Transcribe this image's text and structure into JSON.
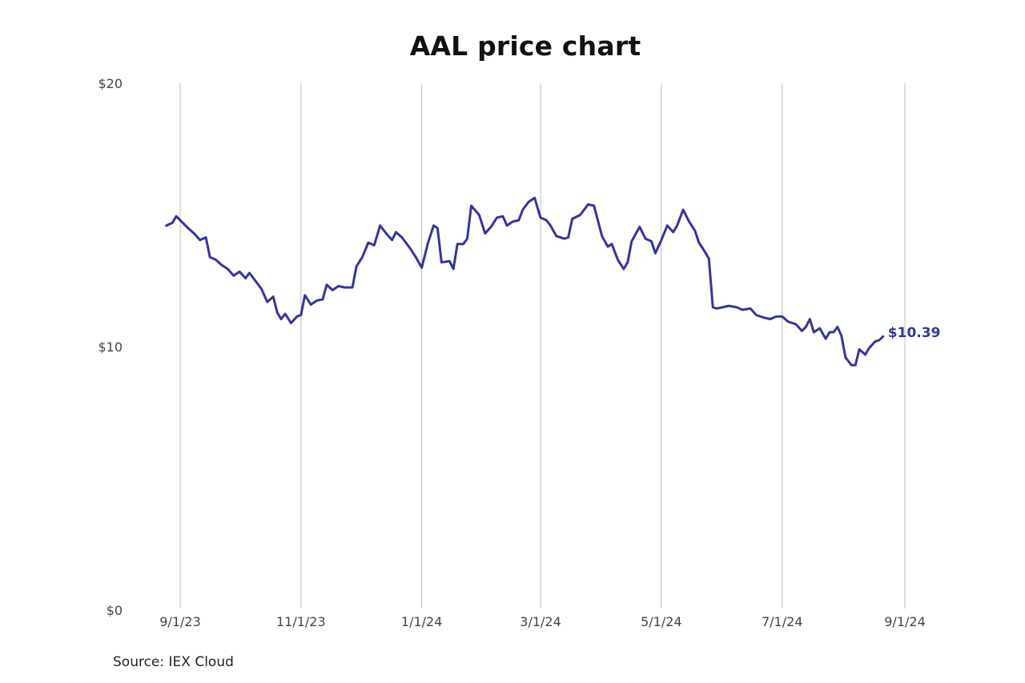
{
  "chart_data": {
    "type": "line",
    "title": "AAL price chart",
    "source": "Source: IEX Cloud",
    "xlabel": "",
    "ylabel": "",
    "ylim": [
      0,
      20
    ],
    "xlim": [
      "2023-08-25",
      "2024-09-01"
    ],
    "yticks": [
      {
        "value": 0,
        "label": "$0"
      },
      {
        "value": 10,
        "label": "$10"
      },
      {
        "value": 20,
        "label": "$20"
      }
    ],
    "xticks": [
      {
        "date": "2023-09-01",
        "label": "9/1/23"
      },
      {
        "date": "2023-11-01",
        "label": "11/1/23"
      },
      {
        "date": "2024-01-01",
        "label": "1/1/24"
      },
      {
        "date": "2024-03-01",
        "label": "3/1/24"
      },
      {
        "date": "2024-05-01",
        "label": "5/1/24"
      },
      {
        "date": "2024-07-01",
        "label": "7/1/24"
      },
      {
        "date": "2024-09-01",
        "label": "9/1/24"
      }
    ],
    "grid": "vertical",
    "line_color": "#35359a",
    "end_label": "$10.39",
    "series": [
      {
        "points": [
          [
            "2023-08-25",
            14.6
          ],
          [
            "2023-08-28",
            14.7
          ],
          [
            "2023-08-30",
            14.95
          ],
          [
            "2023-09-01",
            14.8
          ],
          [
            "2023-09-05",
            14.5
          ],
          [
            "2023-09-08",
            14.3
          ],
          [
            "2023-09-11",
            14.05
          ],
          [
            "2023-09-14",
            14.15
          ],
          [
            "2023-09-16",
            13.4
          ],
          [
            "2023-09-19",
            13.3
          ],
          [
            "2023-09-22",
            13.1
          ],
          [
            "2023-09-25",
            12.95
          ],
          [
            "2023-09-28",
            12.7
          ],
          [
            "2023-10-01",
            12.85
          ],
          [
            "2023-10-04",
            12.6
          ],
          [
            "2023-10-06",
            12.8
          ],
          [
            "2023-10-09",
            12.5
          ],
          [
            "2023-10-12",
            12.2
          ],
          [
            "2023-10-15",
            11.7
          ],
          [
            "2023-10-18",
            11.9
          ],
          [
            "2023-10-20",
            11.3
          ],
          [
            "2023-10-22",
            11.05
          ],
          [
            "2023-10-24",
            11.25
          ],
          [
            "2023-10-27",
            10.9
          ],
          [
            "2023-10-30",
            11.15
          ],
          [
            "2023-11-01",
            11.2
          ],
          [
            "2023-11-03",
            11.95
          ],
          [
            "2023-11-06",
            11.6
          ],
          [
            "2023-11-09",
            11.75
          ],
          [
            "2023-11-12",
            11.8
          ],
          [
            "2023-11-14",
            12.35
          ],
          [
            "2023-11-17",
            12.15
          ],
          [
            "2023-11-20",
            12.3
          ],
          [
            "2023-11-23",
            12.25
          ],
          [
            "2023-11-27",
            12.25
          ],
          [
            "2023-11-29",
            13.05
          ],
          [
            "2023-12-02",
            13.4
          ],
          [
            "2023-12-05",
            13.95
          ],
          [
            "2023-12-08",
            13.85
          ],
          [
            "2023-12-11",
            14.6
          ],
          [
            "2023-12-14",
            14.3
          ],
          [
            "2023-12-17",
            14.05
          ],
          [
            "2023-12-19",
            14.35
          ],
          [
            "2023-12-22",
            14.15
          ],
          [
            "2023-12-26",
            13.75
          ],
          [
            "2023-12-29",
            13.4
          ],
          [
            "2024-01-01",
            13.0
          ],
          [
            "2024-01-04",
            13.9
          ],
          [
            "2024-01-07",
            14.6
          ],
          [
            "2024-01-09",
            14.5
          ],
          [
            "2024-01-11",
            13.2
          ],
          [
            "2024-01-15",
            13.25
          ],
          [
            "2024-01-17",
            12.95
          ],
          [
            "2024-01-19",
            13.9
          ],
          [
            "2024-01-22",
            13.9
          ],
          [
            "2024-01-24",
            14.1
          ],
          [
            "2024-01-26",
            15.35
          ],
          [
            "2024-01-30",
            15.0
          ],
          [
            "2024-02-02",
            14.3
          ],
          [
            "2024-02-05",
            14.55
          ],
          [
            "2024-02-08",
            14.9
          ],
          [
            "2024-02-11",
            14.95
          ],
          [
            "2024-02-13",
            14.6
          ],
          [
            "2024-02-16",
            14.75
          ],
          [
            "2024-02-19",
            14.8
          ],
          [
            "2024-02-21",
            15.2
          ],
          [
            "2024-02-24",
            15.5
          ],
          [
            "2024-02-27",
            15.65
          ],
          [
            "2024-03-01",
            14.9
          ],
          [
            "2024-03-04",
            14.8
          ],
          [
            "2024-03-06",
            14.6
          ],
          [
            "2024-03-09",
            14.2
          ],
          [
            "2024-03-13",
            14.1
          ],
          [
            "2024-03-15",
            14.15
          ],
          [
            "2024-03-17",
            14.85
          ],
          [
            "2024-03-21",
            15.0
          ],
          [
            "2024-03-25",
            15.4
          ],
          [
            "2024-03-28",
            15.35
          ],
          [
            "2024-04-01",
            14.2
          ],
          [
            "2024-04-04",
            13.8
          ],
          [
            "2024-04-06",
            13.9
          ],
          [
            "2024-04-09",
            13.3
          ],
          [
            "2024-04-12",
            12.95
          ],
          [
            "2024-04-14",
            13.2
          ],
          [
            "2024-04-16",
            14.0
          ],
          [
            "2024-04-20",
            14.55
          ],
          [
            "2024-04-23",
            14.1
          ],
          [
            "2024-04-26",
            14.0
          ],
          [
            "2024-04-28",
            13.55
          ],
          [
            "2024-05-01",
            14.05
          ],
          [
            "2024-05-04",
            14.6
          ],
          [
            "2024-05-07",
            14.35
          ],
          [
            "2024-05-09",
            14.6
          ],
          [
            "2024-05-12",
            15.2
          ],
          [
            "2024-05-15",
            14.75
          ],
          [
            "2024-05-18",
            14.4
          ],
          [
            "2024-05-20",
            13.95
          ],
          [
            "2024-05-23",
            13.6
          ],
          [
            "2024-05-25",
            13.35
          ],
          [
            "2024-05-27",
            11.5
          ],
          [
            "2024-05-29",
            11.45
          ],
          [
            "2024-06-01",
            11.5
          ],
          [
            "2024-06-04",
            11.55
          ],
          [
            "2024-06-08",
            11.5
          ],
          [
            "2024-06-11",
            11.4
          ],
          [
            "2024-06-15",
            11.45
          ],
          [
            "2024-06-18",
            11.2
          ],
          [
            "2024-06-22",
            11.1
          ],
          [
            "2024-06-25",
            11.05
          ],
          [
            "2024-06-28",
            11.15
          ],
          [
            "2024-07-01",
            11.15
          ],
          [
            "2024-07-04",
            10.95
          ],
          [
            "2024-07-08",
            10.85
          ],
          [
            "2024-07-11",
            10.6
          ],
          [
            "2024-07-13",
            10.75
          ],
          [
            "2024-07-15",
            11.05
          ],
          [
            "2024-07-17",
            10.55
          ],
          [
            "2024-07-20",
            10.7
          ],
          [
            "2024-07-23",
            10.3
          ],
          [
            "2024-07-25",
            10.55
          ],
          [
            "2024-07-27",
            10.55
          ],
          [
            "2024-07-29",
            10.75
          ],
          [
            "2024-07-31",
            10.4
          ],
          [
            "2024-08-02",
            9.6
          ],
          [
            "2024-08-05",
            9.3
          ],
          [
            "2024-08-07",
            9.3
          ],
          [
            "2024-08-09",
            9.9
          ],
          [
            "2024-08-12",
            9.7
          ],
          [
            "2024-08-14",
            9.95
          ],
          [
            "2024-08-17",
            10.2
          ],
          [
            "2024-08-19",
            10.25
          ],
          [
            "2024-08-21",
            10.39
          ]
        ]
      }
    ]
  }
}
